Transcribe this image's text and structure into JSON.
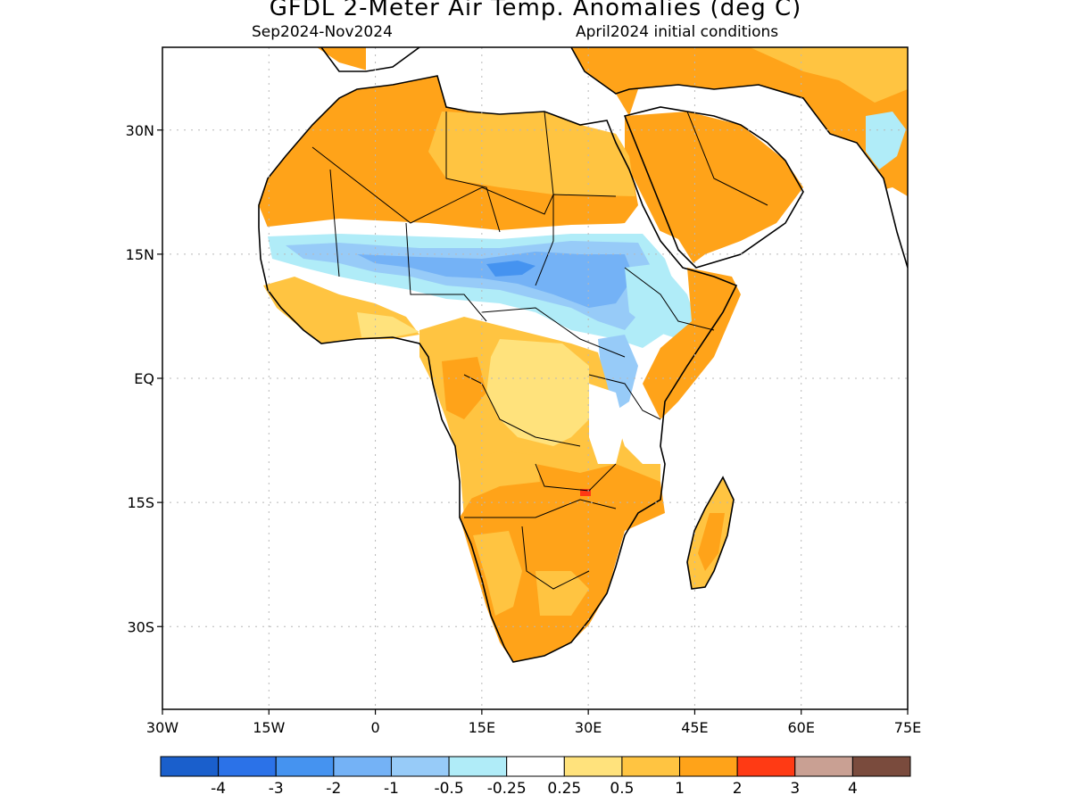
{
  "title": "GFDL 2-Meter Air Temp. Anomalies (deg C)",
  "subtitle_left": "Sep2024-Nov2024",
  "subtitle_right": "April2024 initial conditions",
  "map": {
    "lon_range": [
      -30,
      75
    ],
    "lat_range": [
      -40,
      40
    ],
    "x_ticks": [
      {
        "lon": -30,
        "label": "30W"
      },
      {
        "lon": -15,
        "label": "15W"
      },
      {
        "lon": 0,
        "label": "0"
      },
      {
        "lon": 15,
        "label": "15E"
      },
      {
        "lon": 30,
        "label": "30E"
      },
      {
        "lon": 45,
        "label": "45E"
      },
      {
        "lon": 60,
        "label": "60E"
      },
      {
        "lon": 75,
        "label": "75E"
      }
    ],
    "y_ticks": [
      {
        "lat": 30,
        "label": "30N"
      },
      {
        "lat": 15,
        "label": "15N"
      },
      {
        "lat": 0,
        "label": "EQ"
      },
      {
        "lat": -15,
        "label": "15S"
      },
      {
        "lat": -30,
        "label": "30S"
      }
    ],
    "grid": "dotted"
  },
  "colorbar": {
    "colors": [
      "#1a5fcc",
      "#2b72e8",
      "#4593f0",
      "#74b2f6",
      "#97cbf8",
      "#b0ecf8",
      "#ffffff",
      "#ffe27c",
      "#ffc441",
      "#ffa319",
      "#ff3a14",
      "#c9a093",
      "#7a4b3d"
    ],
    "labels": [
      "-4",
      "-3",
      "-2",
      "-1",
      "-0.5",
      "-0.25",
      "0.25",
      "0.5",
      "1",
      "2",
      "3",
      "4"
    ]
  }
}
